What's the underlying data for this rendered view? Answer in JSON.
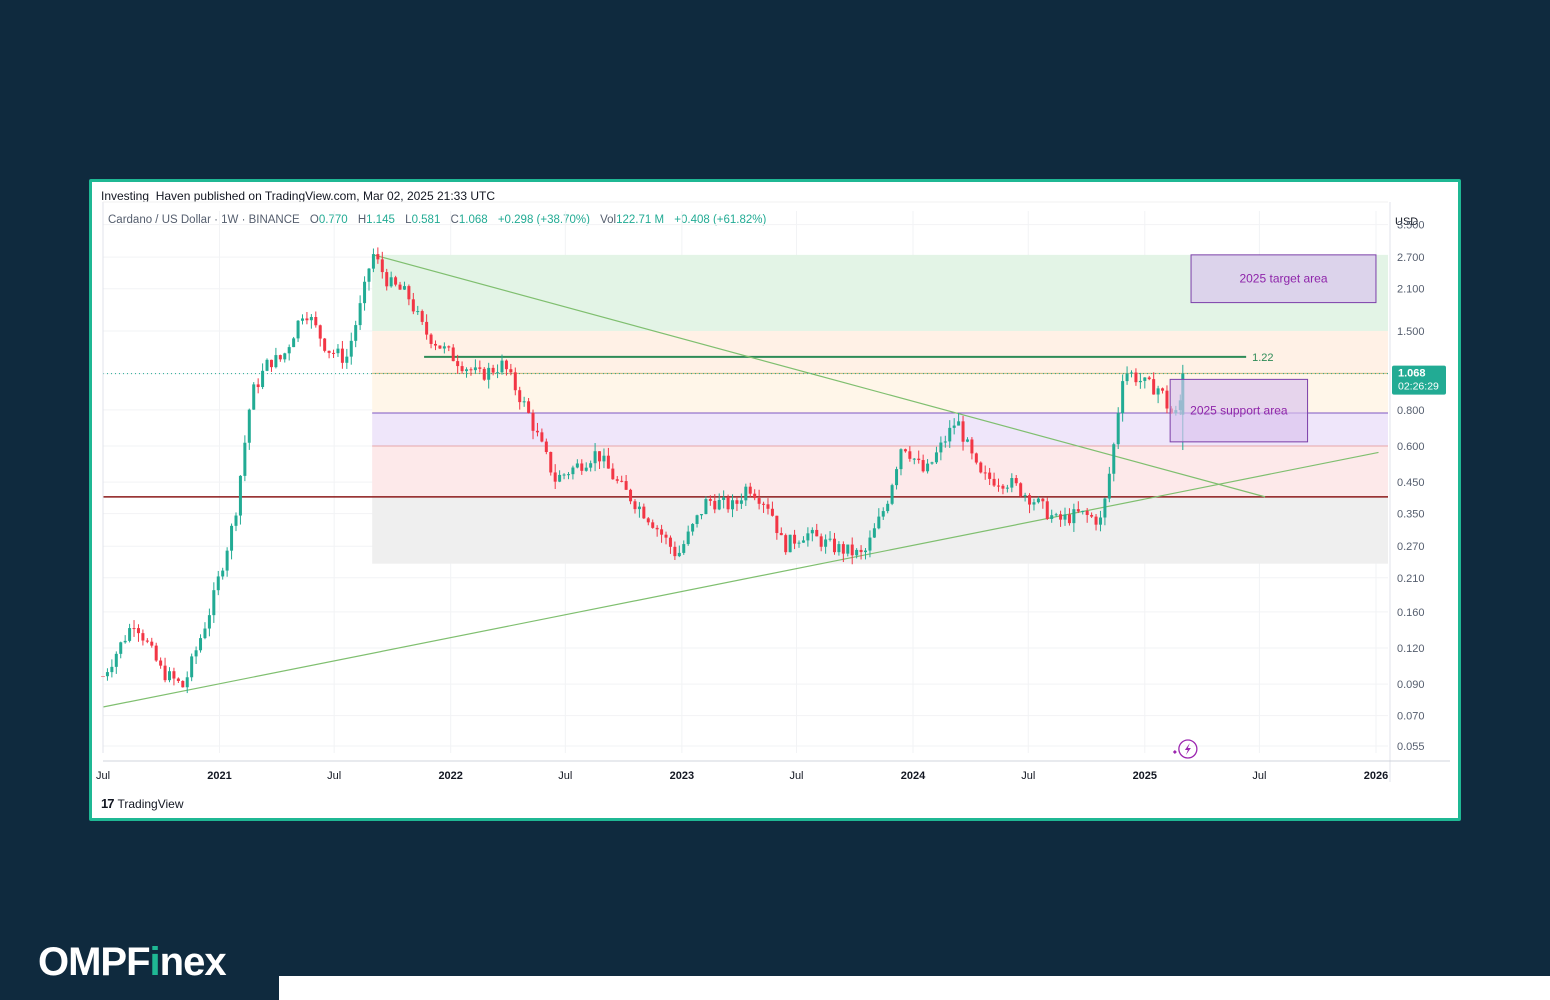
{
  "published": "Investing_Haven published on TradingView.com, Mar 02, 2025 21:33 UTC",
  "legend": {
    "symbol": "Cardano / US Dollar · 1W · BINANCE",
    "o_label": "O",
    "o": "0.770",
    "h_label": "H",
    "h": "1.145",
    "l_label": "L",
    "l": "0.581",
    "c_label": "C",
    "c": "1.068",
    "change": "+0.298 (+38.70%)",
    "vol_label": "Vol",
    "vol": "122.71 M",
    "vol_change": "+0.408 (+61.82%)"
  },
  "currency": "USD",
  "tradingview_label": "TradingView",
  "brand": {
    "prefix": "OMPF",
    "accent": "i",
    "suffix": "nex"
  },
  "colors": {
    "up": "#22ab94",
    "down": "#f23645",
    "background": "#0f2a3e",
    "frame": "#1fb894",
    "accent_purple": "#9c27b0",
    "horizontal_red": "#8b1a1a",
    "level_green": "#2e8b57",
    "trend_green": "#7fbf6f"
  },
  "chart_data": {
    "type": "candlestick",
    "title": "Cardano / US Dollar · 1W · BINANCE",
    "y_scale": "log",
    "y_ticks": [
      "3.500",
      "2.700",
      "2.100",
      "1.500",
      "1.068",
      "0.800",
      "0.600",
      "0.450",
      "0.350",
      "0.270",
      "0.210",
      "0.160",
      "0.120",
      "0.090",
      "0.070",
      "0.055"
    ],
    "ylim": [
      0.052,
      3.9
    ],
    "xlim": [
      "2020-07-01",
      "2026-01-20"
    ],
    "x_ticks": [
      {
        "date": "2020-07-01",
        "label": "Jul",
        "bold": false
      },
      {
        "date": "2021-01-01",
        "label": "2021",
        "bold": true
      },
      {
        "date": "2021-07-01",
        "label": "Jul",
        "bold": false
      },
      {
        "date": "2022-01-01",
        "label": "2022",
        "bold": true
      },
      {
        "date": "2022-07-01",
        "label": "Jul",
        "bold": false
      },
      {
        "date": "2023-01-01",
        "label": "2023",
        "bold": true
      },
      {
        "date": "2023-07-01",
        "label": "Jul",
        "bold": false
      },
      {
        "date": "2024-01-01",
        "label": "2024",
        "bold": true
      },
      {
        "date": "2024-07-01",
        "label": "Jul",
        "bold": false
      },
      {
        "date": "2025-01-01",
        "label": "2025",
        "bold": true
      },
      {
        "date": "2025-07-01",
        "label": "Jul",
        "bold": false
      },
      {
        "date": "2026-01-01",
        "label": "2026",
        "bold": true
      }
    ],
    "close_anchors": [
      [
        "2020-07-01",
        0.096
      ],
      [
        "2020-08-20",
        0.15
      ],
      [
        "2020-10-01",
        0.1
      ],
      [
        "2020-11-05",
        0.088
      ],
      [
        "2020-12-20",
        0.17
      ],
      [
        "2021-01-25",
        0.34
      ],
      [
        "2021-02-20",
        0.9
      ],
      [
        "2021-03-20",
        1.18
      ],
      [
        "2021-04-10",
        1.2
      ],
      [
        "2021-05-15",
        1.8
      ],
      [
        "2021-06-20",
        1.3
      ],
      [
        "2021-07-20",
        1.2
      ],
      [
        "2021-08-15",
        1.95
      ],
      [
        "2021-08-30",
        2.8
      ],
      [
        "2021-09-25",
        2.2
      ],
      [
        "2021-10-25",
        2.0
      ],
      [
        "2021-11-20",
        1.5
      ],
      [
        "2021-12-20",
        1.3
      ],
      [
        "2022-01-20",
        1.15
      ],
      [
        "2022-02-15",
        1.05
      ],
      [
        "2022-03-25",
        1.15
      ],
      [
        "2022-05-01",
        0.8
      ],
      [
        "2022-06-15",
        0.46
      ],
      [
        "2022-07-25",
        0.52
      ],
      [
        "2022-08-20",
        0.57
      ],
      [
        "2022-09-20",
        0.45
      ],
      [
        "2022-11-15",
        0.33
      ],
      [
        "2022-12-25",
        0.25
      ],
      [
        "2023-02-10",
        0.39
      ],
      [
        "2023-03-25",
        0.37
      ],
      [
        "2023-04-15",
        0.44
      ],
      [
        "2023-05-20",
        0.37
      ],
      [
        "2023-06-10",
        0.27
      ],
      [
        "2023-07-15",
        0.3
      ],
      [
        "2023-08-25",
        0.27
      ],
      [
        "2023-10-15",
        0.25
      ],
      [
        "2023-11-20",
        0.38
      ],
      [
        "2023-12-15",
        0.62
      ],
      [
        "2024-01-20",
        0.48
      ],
      [
        "2024-03-10",
        0.74
      ],
      [
        "2024-04-15",
        0.47
      ],
      [
        "2024-06-01",
        0.45
      ],
      [
        "2024-07-10",
        0.39
      ],
      [
        "2024-08-15",
        0.33
      ],
      [
        "2024-09-20",
        0.35
      ],
      [
        "2024-10-25",
        0.33
      ],
      [
        "2024-11-12",
        0.58
      ],
      [
        "2024-11-28",
        1.1
      ],
      [
        "2024-12-15",
        1.05
      ],
      [
        "2025-01-05",
        0.97
      ],
      [
        "2025-01-25",
        0.95
      ],
      [
        "2025-02-10",
        0.78
      ],
      [
        "2025-02-24",
        0.77
      ],
      [
        "2025-03-02",
        1.068
      ]
    ],
    "last_candle": {
      "o": 0.77,
      "h": 1.145,
      "l": 0.581,
      "c": 1.068
    },
    "last_price_label": "1.068",
    "countdown_label": "02:26:29",
    "level_label": "1.22",
    "fib_zones": [
      {
        "low": 1.5,
        "high": 2.75,
        "color": "#e3f4e6"
      },
      {
        "low": 1.07,
        "high": 1.5,
        "color": "#fff1e6"
      },
      {
        "low": 0.78,
        "high": 1.07,
        "color": "#fff6e9"
      },
      {
        "low": 0.6,
        "high": 0.78,
        "color": "#efe6fa"
      },
      {
        "low": 0.4,
        "high": 0.6,
        "color": "#fde9ea"
      },
      {
        "low": 0.235,
        "high": 0.4,
        "color": "#efefef"
      }
    ],
    "fib_start": "2021-08-30",
    "fib_lines": [
      {
        "y": 1.22,
        "color": "#2e8b57",
        "width": 2,
        "from": "2021-11-20",
        "to": "2025-06-10"
      },
      {
        "y": 1.07,
        "color": "#c9b779",
        "width": 1,
        "from": "2021-08-30",
        "to": "2026-01-20"
      },
      {
        "y": 0.78,
        "color": "#7e57c2",
        "width": 1,
        "from": "2021-08-30",
        "to": "2026-01-20"
      },
      {
        "y": 0.6,
        "color": "#e6a6ab",
        "width": 1,
        "from": "2021-08-30",
        "to": "2026-01-20"
      },
      {
        "y": 0.4,
        "color": "#8b1a1a",
        "width": 1.5,
        "from": "2020-07-01",
        "to": "2026-01-20"
      }
    ],
    "trendlines": [
      {
        "from": [
          "2020-07-01",
          0.075
        ],
        "to": [
          "2026-01-05",
          0.57
        ],
        "color": "#7fbf6f"
      },
      {
        "from": [
          "2021-09-01",
          2.75
        ],
        "to": [
          "2025-07-10",
          0.4
        ],
        "color": "#7fbf6f"
      }
    ],
    "annotations": [
      {
        "label": "2025 target area",
        "x0": "2025-03-15",
        "x1": "2026-01-01",
        "y0": 1.88,
        "y1": 2.75
      },
      {
        "label": "2025 support area",
        "x0": "2025-02-10",
        "x1": "2025-09-15",
        "y0": 0.62,
        "y1": 1.02
      }
    ]
  }
}
